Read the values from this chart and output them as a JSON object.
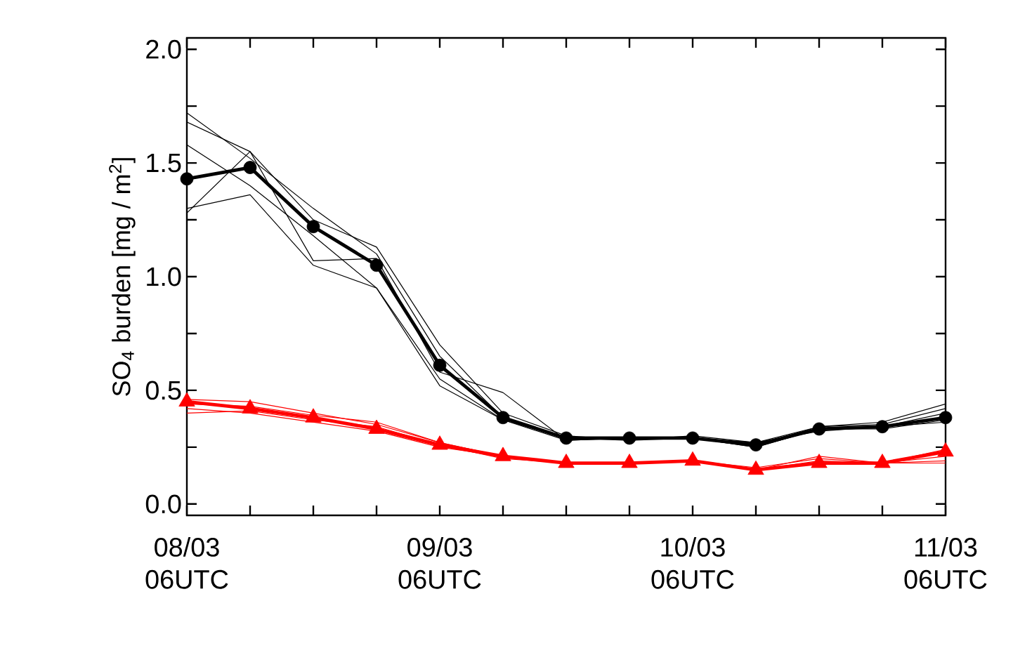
{
  "chart_data": {
    "type": "line",
    "ylabel": "SO$_{4}$ burden [mg / m$^{2}$]",
    "categories": [
      "08/03 06UTC",
      null,
      null,
      null,
      "09/03 06UTC",
      null,
      null,
      null,
      "10/03 06UTC",
      null,
      null,
      null,
      "11/03 06UTC"
    ],
    "ylim": [
      -0.05,
      2.05
    ],
    "yticks": [
      {
        "value": 0,
        "label": "0.0"
      },
      {
        "value": 0.25,
        "label": null
      },
      {
        "value": 0.5,
        "label": "0.5"
      },
      {
        "value": 0.75,
        "label": null
      },
      {
        "value": 1.0,
        "label": "1.0"
      },
      {
        "value": 1.25,
        "label": null
      },
      {
        "value": 1.5,
        "label": "1.5"
      },
      {
        "value": 1.75,
        "label": null
      },
      {
        "value": 2.0,
        "label": "2.0"
      }
    ],
    "grid": false,
    "line_style": "solid",
    "series": [
      {
        "color": "#000000",
        "marker": "circle",
        "values": [
          1.43,
          1.48,
          1.22,
          1.05,
          0.61,
          0.38,
          0.29,
          0.29,
          0.29,
          0.26,
          0.33,
          0.34,
          0.38
        ]
      },
      {
        "color": "#ff0000",
        "marker": "triangle",
        "values": [
          0.45,
          0.42,
          0.38,
          0.33,
          0.26,
          0.21,
          0.18,
          0.18,
          0.19,
          0.15,
          0.18,
          0.18,
          0.23
        ]
      },
      {
        "color": "#000000",
        "marker": "none",
        "values": [
          1.72,
          1.52,
          1.3,
          1.1,
          0.65,
          0.38,
          0.29,
          0.29,
          0.29,
          0.27,
          0.34,
          0.35,
          0.42
        ]
      },
      {
        "color": "#000000",
        "marker": "none",
        "values": [
          1.68,
          1.55,
          1.25,
          1.13,
          0.7,
          0.4,
          0.3,
          0.28,
          0.3,
          0.27,
          0.32,
          0.34,
          0.4
        ]
      },
      {
        "color": "#000000",
        "marker": "none",
        "values": [
          1.58,
          1.4,
          1.18,
          0.95,
          0.55,
          0.37,
          0.28,
          0.29,
          0.29,
          0.25,
          0.33,
          0.33,
          0.37
        ]
      },
      {
        "color": "#000000",
        "marker": "none",
        "values": [
          1.28,
          1.55,
          1.07,
          1.08,
          0.58,
          0.49,
          0.28,
          0.29,
          0.29,
          0.26,
          0.34,
          0.36,
          0.44
        ]
      },
      {
        "color": "#000000",
        "marker": "none",
        "values": [
          1.3,
          1.36,
          1.05,
          0.95,
          0.52,
          0.37,
          0.29,
          0.28,
          0.29,
          0.25,
          0.33,
          0.34,
          0.36
        ]
      },
      {
        "color": "#ff0000",
        "marker": "none",
        "values": [
          0.46,
          0.45,
          0.4,
          0.35,
          0.27,
          0.21,
          0.18,
          0.18,
          0.19,
          0.15,
          0.21,
          0.18,
          0.24
        ]
      },
      {
        "color": "#ff0000",
        "marker": "none",
        "values": [
          0.42,
          0.4,
          0.36,
          0.32,
          0.25,
          0.21,
          0.18,
          0.18,
          0.19,
          0.16,
          0.2,
          0.18,
          0.21
        ]
      },
      {
        "color": "#ff0000",
        "marker": "none",
        "values": [
          0.4,
          0.41,
          0.37,
          0.34,
          0.26,
          0.2,
          0.18,
          0.18,
          0.19,
          0.15,
          0.19,
          0.18,
          0.19
        ]
      },
      {
        "color": "#ff0000",
        "marker": "none",
        "values": [
          0.44,
          0.43,
          0.39,
          0.36,
          0.27,
          0.21,
          0.18,
          0.18,
          0.19,
          0.15,
          0.18,
          0.18,
          0.18
        ]
      }
    ]
  }
}
